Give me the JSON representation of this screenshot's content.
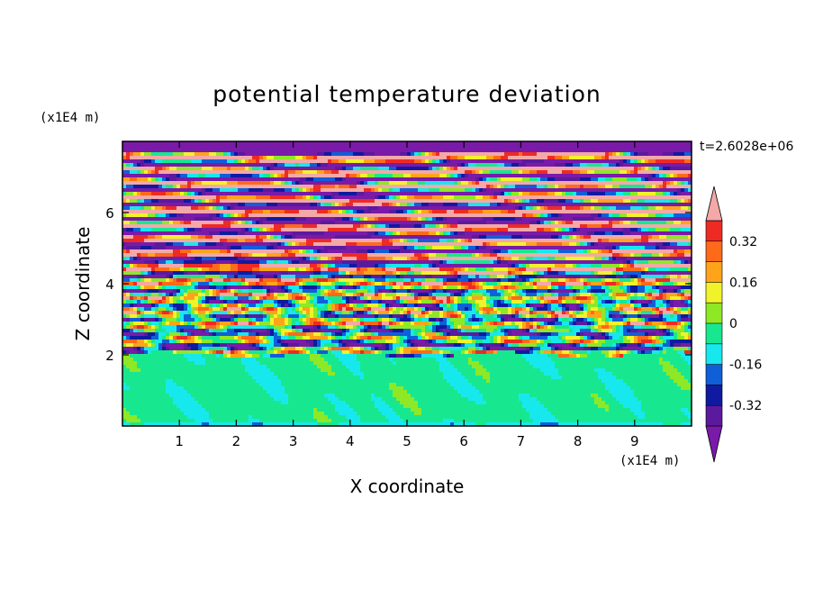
{
  "chart_data": {
    "type": "heatmap",
    "title": "potential temperature deviation",
    "xlabel": "X coordinate",
    "ylabel": "Z coordinate",
    "x_unit": "(x1E4 m)",
    "y_unit": "(x1E4 m)",
    "timestamp": "t=2.6028e+06",
    "xlim": [
      0,
      10
    ],
    "ylim": [
      0,
      8
    ],
    "x_ticks": [
      "1",
      "2",
      "3",
      "4",
      "5",
      "6",
      "7",
      "8",
      "9"
    ],
    "y_ticks": [
      "2",
      "4",
      "6"
    ],
    "colorbar": {
      "levels": [
        -0.48,
        -0.4,
        -0.32,
        -0.24,
        -0.16,
        -0.08,
        0,
        0.08,
        0.16,
        0.24,
        0.32,
        0.4,
        0.48
      ],
      "colors": [
        "#7a1aa8",
        "#5b1a9e",
        "#0f1aa0",
        "#0f5fd8",
        "#17e8ee",
        "#17e890",
        "#8ee826",
        "#f2f22a",
        "#ffa41a",
        "#ff6a1a",
        "#ee2a24",
        "#f4a8a8"
      ],
      "labels": [
        "0.32",
        "0.16",
        "0",
        "-0.16",
        "-0.32"
      ],
      "extend": "both"
    },
    "bands": [
      {
        "z_from": 0,
        "z_to": 2.0,
        "dominant": "green",
        "value": -0.04
      },
      {
        "z_from": 2.0,
        "z_to": 3.0,
        "dominant": "mixed",
        "value": 0.0
      },
      {
        "z_from": 3.0,
        "z_to": 8.0,
        "dominant": "alternating pink/purple",
        "value": 0.0
      }
    ]
  }
}
